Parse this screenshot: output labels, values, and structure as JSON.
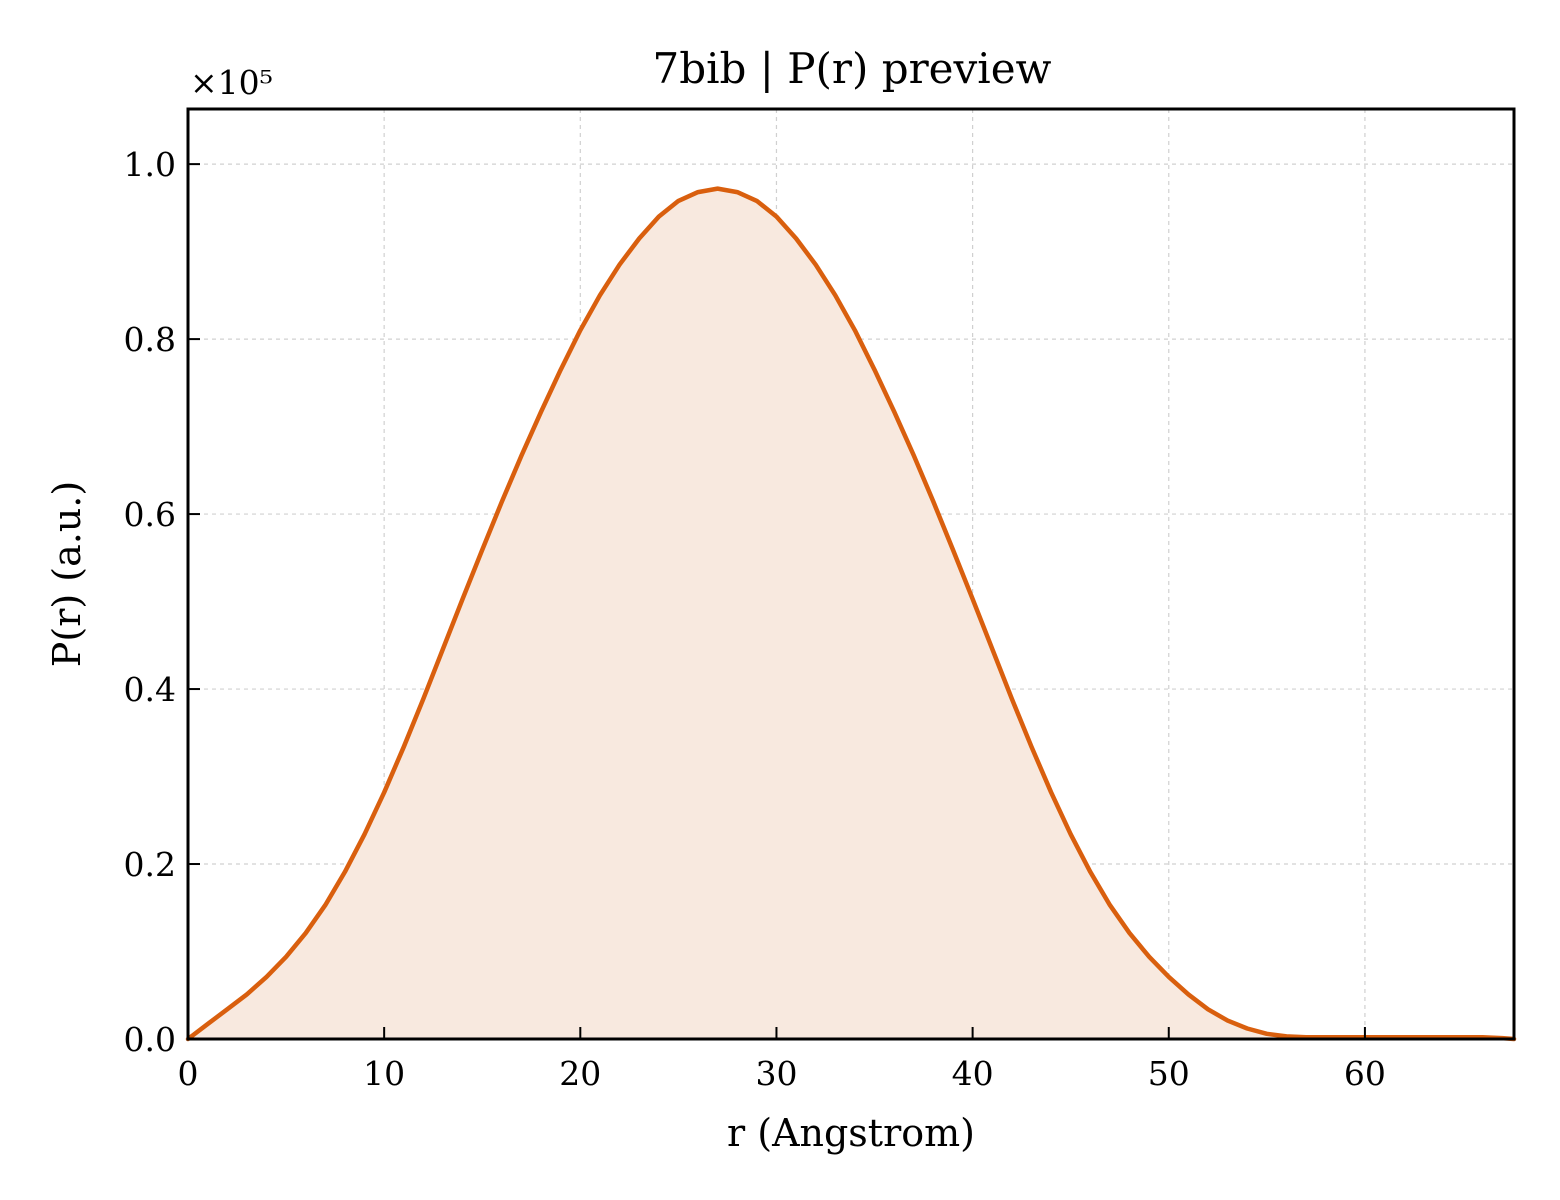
{
  "chart_data": {
    "type": "area",
    "title": "7bib | P(r) preview",
    "xlabel": "r (Angstrom)",
    "ylabel": "P(r) (a.u.)",
    "y_offset_label": "×10⁵",
    "xlim": [
      0,
      67.6
    ],
    "ylim": [
      0,
      1.063
    ],
    "x_ticks": [
      0,
      10,
      20,
      30,
      40,
      50,
      60
    ],
    "x_tick_labels": [
      "0",
      "10",
      "20",
      "30",
      "40",
      "50",
      "60"
    ],
    "y_ticks": [
      0.0,
      0.2,
      0.4,
      0.6,
      0.8,
      1.0
    ],
    "y_tick_labels": [
      "0.0",
      "0.2",
      "0.4",
      "0.6",
      "0.8",
      "1.0"
    ],
    "grid": true,
    "line_color": "#d95f0e",
    "fill_color": "#f8e9df",
    "series": [
      {
        "x": [
          0,
          1,
          2,
          3,
          4,
          5,
          6,
          7,
          8,
          9,
          10,
          11,
          12,
          13,
          14,
          15,
          16,
          17,
          18,
          19,
          20,
          21,
          22,
          23,
          24,
          25,
          26,
          27,
          28,
          29,
          30,
          31,
          32,
          33,
          34,
          35,
          36,
          37,
          38,
          39,
          40,
          41,
          42,
          43,
          44,
          45,
          46,
          47,
          48,
          49,
          50,
          51,
          52,
          53,
          54,
          55,
          56,
          57,
          58,
          59,
          60,
          61,
          62,
          63,
          64,
          65,
          66,
          67,
          67.6
        ],
        "y": [
          0.0,
          0.017,
          0.034,
          0.051,
          0.071,
          0.094,
          0.121,
          0.153,
          0.191,
          0.234,
          0.282,
          0.334,
          0.389,
          0.446,
          0.503,
          0.559,
          0.614,
          0.667,
          0.717,
          0.765,
          0.81,
          0.85,
          0.885,
          0.915,
          0.94,
          0.958,
          0.968,
          0.972,
          0.968,
          0.958,
          0.94,
          0.915,
          0.885,
          0.85,
          0.81,
          0.765,
          0.717,
          0.667,
          0.614,
          0.559,
          0.503,
          0.446,
          0.389,
          0.334,
          0.282,
          0.234,
          0.191,
          0.153,
          0.121,
          0.094,
          0.071,
          0.051,
          0.034,
          0.021,
          0.012,
          0.006,
          0.003,
          0.002,
          0.002,
          0.002,
          0.002,
          0.002,
          0.002,
          0.002,
          0.002,
          0.002,
          0.002,
          0.001,
          0.0
        ]
      }
    ]
  }
}
